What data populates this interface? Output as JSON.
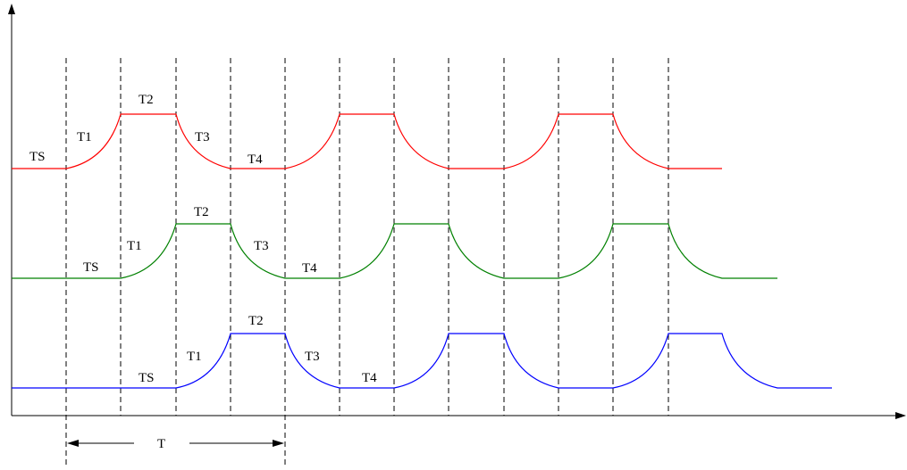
{
  "labels": {
    "ts": "TS",
    "t1": "T1",
    "t2": "T2",
    "t3": "T3",
    "t4": "T4",
    "period": "T"
  },
  "colors": {
    "wave_top": "#ff0000",
    "wave_middle": "#008000",
    "wave_bottom": "#0000ff",
    "axis": "#000000",
    "guides": "#000000"
  },
  "icons": {
    "y_axis_arrow": "arrow-up-icon",
    "x_axis_arrow": "arrow-right-icon",
    "period_arrows": "double-arrow-icon"
  }
}
